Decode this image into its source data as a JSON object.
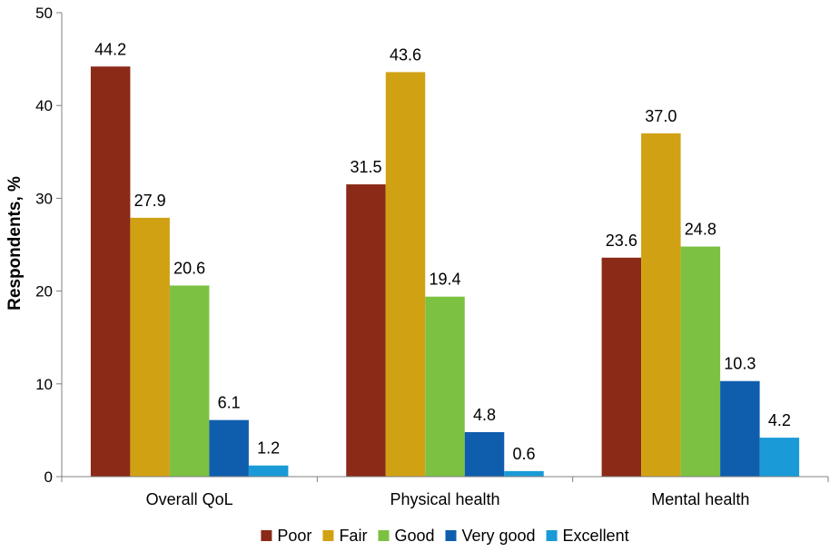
{
  "chart_data": {
    "type": "bar",
    "ylabel": "Respondents, %",
    "xlabel": "",
    "ylim": [
      0,
      50
    ],
    "yticks": [
      0,
      10,
      20,
      30,
      40,
      50
    ],
    "grid": false,
    "legend_position": "bottom",
    "categories": [
      "Overall QoL",
      "Physical health",
      "Mental health"
    ],
    "series": [
      {
        "name": "Poor",
        "color": "#8B2A16",
        "values": [
          44.2,
          31.5,
          23.6
        ],
        "labels": [
          "44.2",
          "31.5",
          "23.6"
        ]
      },
      {
        "name": "Fair",
        "color": "#D1A114",
        "values": [
          27.9,
          43.6,
          37.0
        ],
        "labels": [
          "27.9",
          "43.6",
          "37.0"
        ]
      },
      {
        "name": "Good",
        "color": "#7CC142",
        "values": [
          20.6,
          19.4,
          24.8
        ],
        "labels": [
          "20.6",
          "19.4",
          "24.8"
        ]
      },
      {
        "name": "Very good",
        "color": "#0F5EAE",
        "values": [
          6.1,
          4.8,
          10.3
        ],
        "labels": [
          "6.1",
          "4.8",
          "10.3"
        ]
      },
      {
        "name": "Excellent",
        "color": "#1A9BD7",
        "values": [
          1.2,
          0.6,
          4.2
        ],
        "labels": [
          "1.2",
          "0.6",
          "4.2"
        ]
      }
    ]
  }
}
